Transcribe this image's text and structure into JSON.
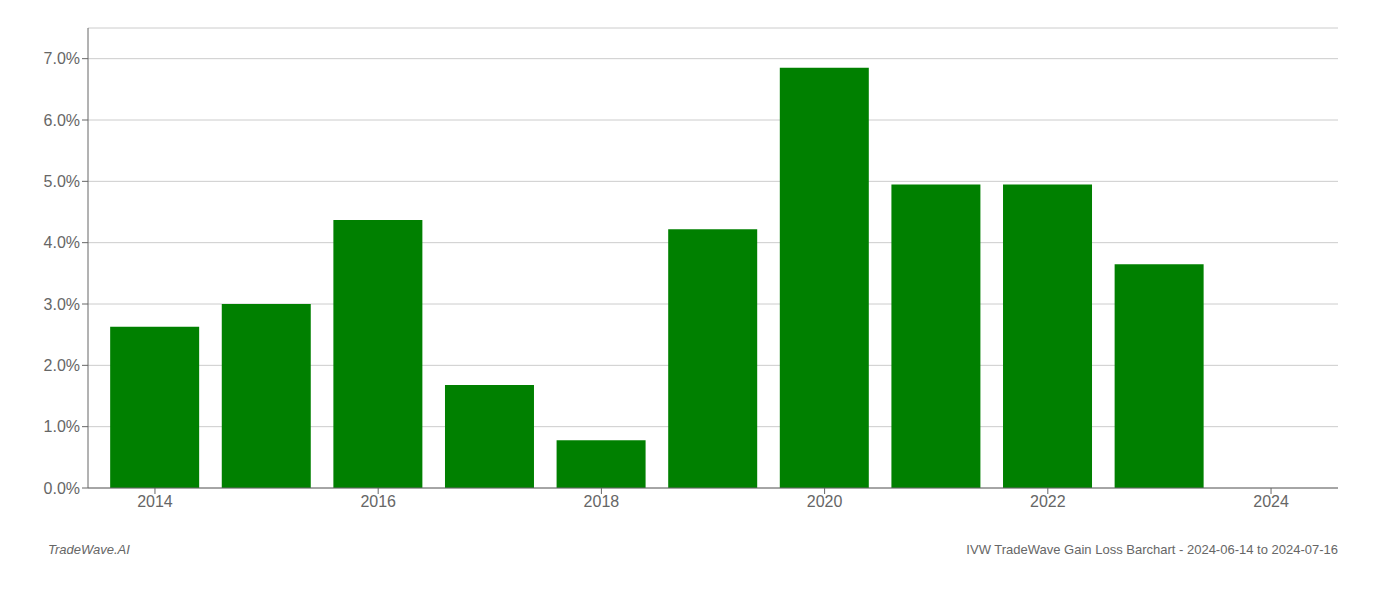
{
  "chart_data": {
    "type": "bar",
    "x": [
      2014,
      2015,
      2016,
      2017,
      2018,
      2019,
      2020,
      2021,
      2022,
      2023
    ],
    "values": [
      0.0263,
      0.03,
      0.0437,
      0.0168,
      0.0078,
      0.0422,
      0.0685,
      0.0495,
      0.0495,
      0.0365
    ],
    "color": "#008000",
    "xlim": [
      2013.4,
      2024.6
    ],
    "xticks": [
      2014,
      2016,
      2018,
      2020,
      2022,
      2024
    ],
    "ylim": [
      0.0,
      0.075
    ],
    "yticks": [
      {
        "value": 0.0,
        "label": "0.0%"
      },
      {
        "value": 0.01,
        "label": "1.0%"
      },
      {
        "value": 0.02,
        "label": "2.0%"
      },
      {
        "value": 0.03,
        "label": "3.0%"
      },
      {
        "value": 0.04,
        "label": "4.0%"
      },
      {
        "value": 0.05,
        "label": "5.0%"
      },
      {
        "value": 0.06,
        "label": "6.0%"
      },
      {
        "value": 0.07,
        "label": "7.0%"
      }
    ],
    "grid": true,
    "annotations": [
      "TradeWave.AI",
      "IVW TradeWave Gain Loss Barchart - 2024-06-14 to 2024-07-16"
    ]
  }
}
